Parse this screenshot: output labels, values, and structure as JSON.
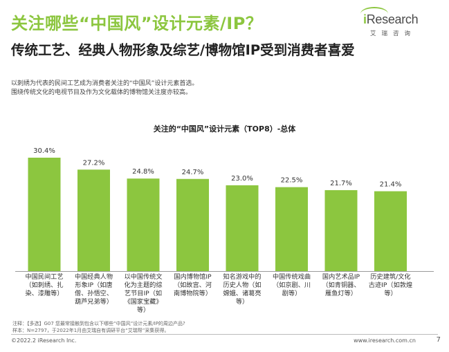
{
  "header": {
    "title": "关注哪些“中国风”设计元素/IP？",
    "subtitle": "传统工艺、经典人物形象及综艺/博物馆IP受到消费者喜爱",
    "desc_lines": [
      "以刺绣为代表的民间工艺成为消费者关注的“中国风”设计元素首选。",
      "围绕传统文化的电视节目及作为文化载体的博物馆关注度亦较高。"
    ]
  },
  "logo": {
    "brand_i": "i",
    "brand_rest": "Research",
    "sub": "艾瑞咨询"
  },
  "chart_data": {
    "type": "bar",
    "title": "关注的“中国风”设计元素（TOP8）-总体",
    "categories": [
      "中国民间工艺（如刺绣、扎染、漆雕等）",
      "中国经典人物形象IP（如唐僧、孙悟空、葫芦兄弟等）",
      "以中国传统文化为主题的综艺节目IP（如《国家宝藏》等）",
      "国内博物馆IP（如故宫、河南博物院等）",
      "知名游戏中的历史人物（如嫦娥、诸葛亮等）",
      "中国传统戏曲（如京剧、川剧等）",
      "国内艺术品IP（如青铜器、雁鱼灯等）",
      "历史建筑/文化古迹IP（如敦煌等）"
    ],
    "values": [
      30.4,
      27.2,
      24.8,
      24.7,
      23.0,
      22.5,
      21.7,
      21.4
    ],
    "data_labels": [
      "30.4%",
      "27.2%",
      "24.8%",
      "24.7%",
      "23.0%",
      "22.5%",
      "21.7%",
      "21.4%"
    ],
    "ylim": [
      0,
      30.4
    ],
    "bar_color": "#8cc63f",
    "grid": false
  },
  "footer": {
    "note1": "注释：【多选】G07 您最常接触到包含以下哪些“中国风”设计元素/IP的周边产品?",
    "note2": "样本：N=2797，于2022年1月由艾瑞自有调研平台“艾瑞帮”采集获得。",
    "copyright": "©2022.2 iResearch Inc.",
    "website": "www.iresearch.com.cn",
    "page": "7"
  }
}
